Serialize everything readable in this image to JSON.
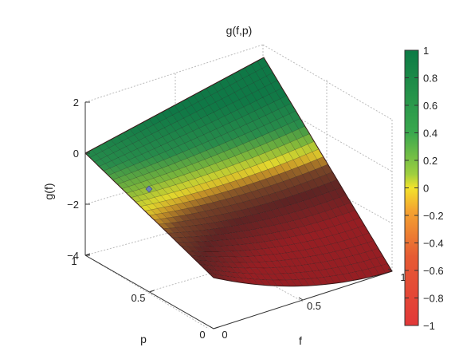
{
  "chart_data": {
    "type": "surface",
    "title": "g(f,p)",
    "zlabel": "g(f)",
    "xlabel": "f",
    "ylabel": "p",
    "f_ticks": [
      "0",
      "0.5",
      "1"
    ],
    "p_ticks": [
      "0",
      "0.5",
      "1"
    ],
    "z_ticks": [
      "2",
      "0",
      "−2",
      "−4"
    ],
    "f_range": [
      0,
      1
    ],
    "p_range": [
      0,
      1
    ],
    "z_range": [
      -4,
      2
    ],
    "colorbar": {
      "ticks": [
        "1",
        "0.8",
        "0.6",
        "0.4",
        "0.2",
        "0",
        "−0.2",
        "−0.4",
        "−0.6",
        "−0.8",
        "−1"
      ],
      "range": [
        -1,
        1
      ],
      "colors": {
        "high": "#0e8a4f",
        "mid_high": "#5cb84a",
        "zero": "#f2e32a",
        "mid_low": "#f08a2a",
        "low": "#e03a3a"
      }
    },
    "surface_corners": [
      {
        "f": 0,
        "p": 1,
        "g": 0
      },
      {
        "f": 1,
        "p": 1,
        "g": 1.5
      },
      {
        "f": 1,
        "p": 0,
        "g": -4
      },
      {
        "f": 0,
        "p": 0,
        "g": -2
      }
    ],
    "grid": true
  }
}
